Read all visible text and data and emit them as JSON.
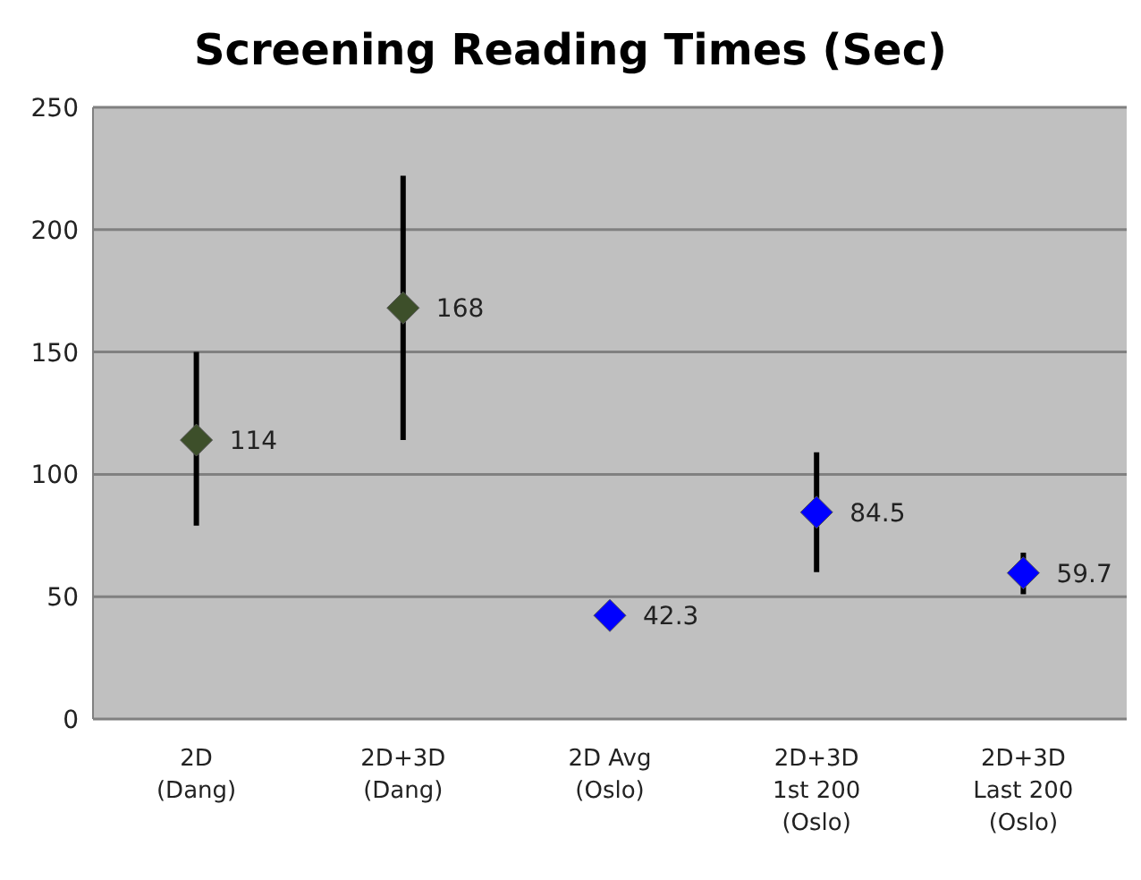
{
  "chart_data": {
    "type": "scatter",
    "title": "Screening Reading Times (Sec)",
    "categories": [
      "2D\n(Dang)",
      "2D+3D\n(Dang)",
      "2D Avg\n(Oslo)",
      "2D+3D\n1st 200\n(Oslo)",
      "2D+3D\nLast 200\n(Oslo)"
    ],
    "values": [
      114,
      168,
      42.3,
      84.5,
      59.7
    ],
    "colors": [
      "#3d4f2a",
      "#3d4f2a",
      "#0000ff",
      "#0000ff",
      "#0000ff"
    ],
    "errors": [
      [
        79,
        150
      ],
      [
        114,
        222
      ],
      null,
      [
        60,
        109
      ],
      [
        51,
        68
      ]
    ],
    "data_labels": true,
    "marker": "diamond",
    "ylim": [
      0,
      250
    ],
    "yticks": [
      0,
      50,
      100,
      150,
      200,
      250
    ],
    "grid": "y"
  }
}
